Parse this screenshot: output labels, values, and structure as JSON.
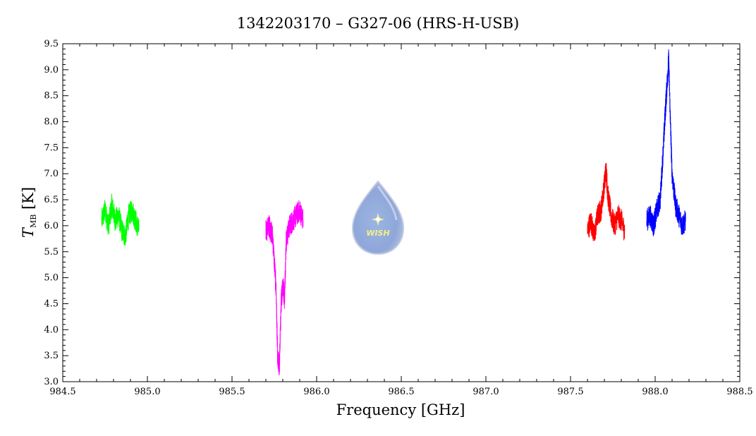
{
  "chart_data": {
    "type": "line",
    "title": "1342203170 – G327-06 (HRS-H-USB)",
    "xlabel": "Frequency [GHz]",
    "ylabel": {
      "main": "T",
      "sub": "MB",
      "unit": " [K]"
    },
    "xlim": [
      984.5,
      988.5
    ],
    "ylim": [
      3.0,
      9.5
    ],
    "xticks": [
      "984.5",
      "985.0",
      "985.5",
      "986.0",
      "986.5",
      "987.0",
      "987.5",
      "988.0",
      "988.5"
    ],
    "yticks": [
      "3.0",
      "3.5",
      "4.0",
      "4.5",
      "5.0",
      "5.5",
      "6.0",
      "6.5",
      "7.0",
      "7.5",
      "8.0",
      "8.5",
      "9.0",
      "9.5"
    ],
    "grid": false,
    "series": [
      {
        "color": "#00ff00",
        "x": [
          984.73,
          984.75,
          984.77,
          984.79,
          984.81,
          984.83,
          984.85,
          984.87,
          984.89,
          984.91,
          984.93,
          984.95
        ],
        "y": [
          6.1,
          6.3,
          6.0,
          6.4,
          6.1,
          6.2,
          5.9,
          5.8,
          6.2,
          6.3,
          6.1,
          5.9
        ]
      },
      {
        "color": "#ff00ff",
        "x": [
          985.7,
          985.72,
          985.74,
          985.76,
          985.77,
          985.78,
          985.79,
          985.8,
          985.81,
          985.82,
          985.84,
          985.86,
          985.88,
          985.9,
          985.92
        ],
        "y": [
          5.9,
          6.0,
          5.8,
          4.8,
          3.4,
          3.3,
          4.5,
          4.9,
          4.6,
          5.7,
          6.0,
          6.1,
          6.2,
          6.3,
          6.1
        ]
      },
      {
        "color": "#ff0000",
        "x": [
          987.6,
          987.62,
          987.64,
          987.66,
          987.68,
          987.7,
          987.71,
          987.72,
          987.74,
          987.76,
          987.78,
          987.8,
          987.82
        ],
        "y": [
          5.9,
          6.1,
          5.8,
          6.2,
          6.3,
          6.8,
          7.1,
          6.6,
          6.2,
          6.0,
          6.2,
          6.1,
          5.9
        ]
      },
      {
        "color": "#0000ff",
        "x": [
          987.95,
          987.97,
          987.99,
          988.01,
          988.03,
          988.05,
          988.06,
          988.07,
          988.08,
          988.09,
          988.1,
          988.12,
          988.14,
          988.16,
          988.18
        ],
        "y": [
          6.1,
          6.2,
          6.0,
          6.3,
          6.5,
          7.6,
          8.2,
          8.7,
          9.2,
          8.0,
          7.0,
          6.4,
          6.2,
          6.0,
          6.1
        ]
      }
    ]
  },
  "logo": {
    "text": "WISH"
  }
}
